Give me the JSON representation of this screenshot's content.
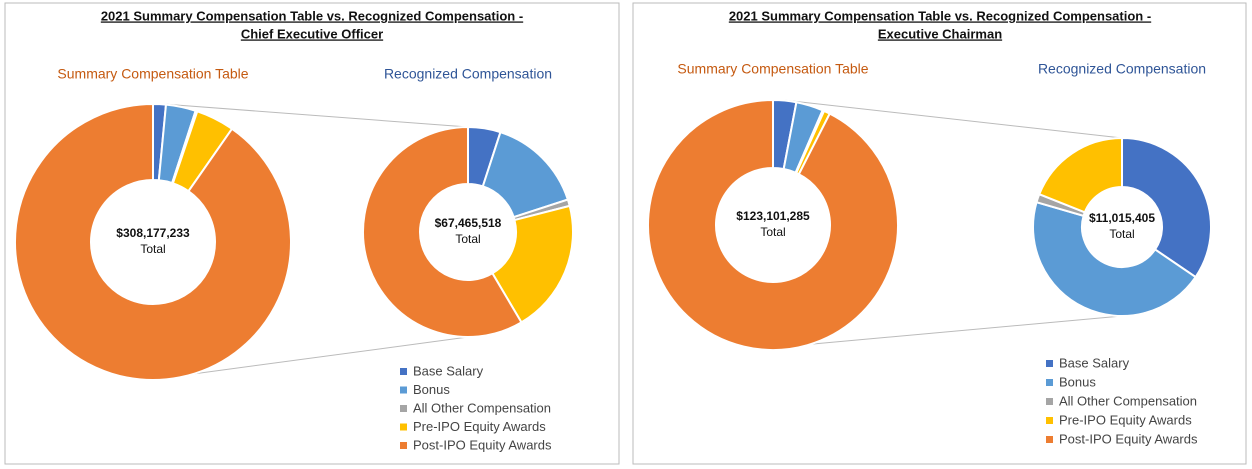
{
  "chart_data": [
    {
      "type": "donut",
      "title": [
        "2021 Summary Compensation Table vs. Recognized Compensation -",
        "Chief Executive Officer"
      ],
      "categories": [
        "Base Salary",
        "Bonus",
        "All Other Compensation",
        "Pre-IPO Equity Awards",
        "Post-IPO Equity Awards"
      ],
      "colors": [
        "#4472c4",
        "#5b9bd5",
        "#a5a5a5",
        "#ffc000",
        "#ed7d31"
      ],
      "donuts": [
        {
          "name": "Summary Compensation Table",
          "name_color": "#c55a11",
          "total": "$308,177,233",
          "total_label": "Total",
          "values": [
            1.5,
            3.5,
            0.2,
            4.5,
            90.3
          ]
        },
        {
          "name": "Recognized Compensation",
          "name_color": "#2f5597",
          "total": "$67,465,518",
          "total_label": "Total",
          "values": [
            5,
            15,
            1,
            20.5,
            58.5
          ]
        }
      ]
    },
    {
      "type": "donut",
      "title": [
        "2021 Summary Compensation Table vs. Recognized Compensation -",
        "Executive Chairman"
      ],
      "categories": [
        "Base Salary",
        "Bonus",
        "All Other Compensation",
        "Pre-IPO Equity Awards",
        "Post-IPO Equity Awards"
      ],
      "colors": [
        "#4472c4",
        "#5b9bd5",
        "#a5a5a5",
        "#ffc000",
        "#ed7d31"
      ],
      "donuts": [
        {
          "name": "Summary Compensation Table",
          "name_color": "#c55a11",
          "total": "$123,101,285",
          "total_label": "Total",
          "values": [
            3,
            3.5,
            0.2,
            0.8,
            92.5
          ]
        },
        {
          "name": "Recognized Compensation",
          "name_color": "#2f5597",
          "total": "$11,015,405",
          "total_label": "Total",
          "values": [
            34.5,
            45,
            1.5,
            19,
            0
          ]
        }
      ]
    }
  ]
}
